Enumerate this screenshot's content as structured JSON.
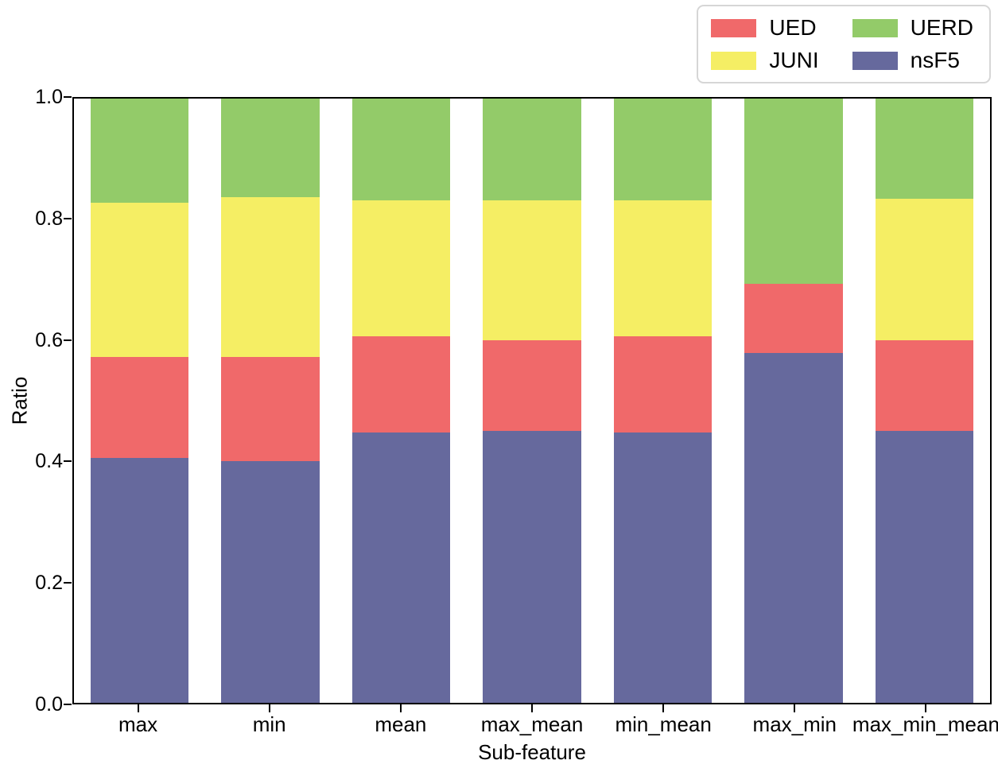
{
  "chart_data": {
    "type": "bar",
    "stacked": true,
    "title": "",
    "xlabel": "Sub-feature",
    "ylabel": "Ratio",
    "ylim": [
      0,
      1
    ],
    "grid": false,
    "legend_position": "top-right-outside",
    "categories": [
      "max",
      "min",
      "mean",
      "max_mean",
      "min_mean",
      "max_min",
      "max_min_mean"
    ],
    "series": [
      {
        "name": "nsF5",
        "color": "#66699d",
        "values": [
          0.405,
          0.4,
          0.447,
          0.45,
          0.448,
          0.579,
          0.45
        ]
      },
      {
        "name": "UED",
        "color": "#f0696a",
        "values": [
          0.167,
          0.173,
          0.16,
          0.15,
          0.159,
          0.114,
          0.15
        ]
      },
      {
        "name": "JUNI",
        "color": "#f5ee64",
        "values": [
          0.256,
          0.264,
          0.225,
          0.232,
          0.225,
          0.0,
          0.234
        ]
      },
      {
        "name": "UERD",
        "color": "#93cb69",
        "values": [
          0.172,
          0.163,
          0.168,
          0.168,
          0.168,
          0.307,
          0.166
        ]
      }
    ],
    "legend_labels": [
      "UED",
      "JUNI",
      "UERD",
      "nsF5"
    ],
    "yticks": [
      {
        "label": "0.0",
        "value": 0.0
      },
      {
        "label": "0.2",
        "value": 0.2
      },
      {
        "label": "0.4",
        "value": 0.4
      },
      {
        "label": "0.6",
        "value": 0.6
      },
      {
        "label": "0.8",
        "value": 0.8
      },
      {
        "label": "1.0",
        "value": 1.0
      }
    ]
  }
}
